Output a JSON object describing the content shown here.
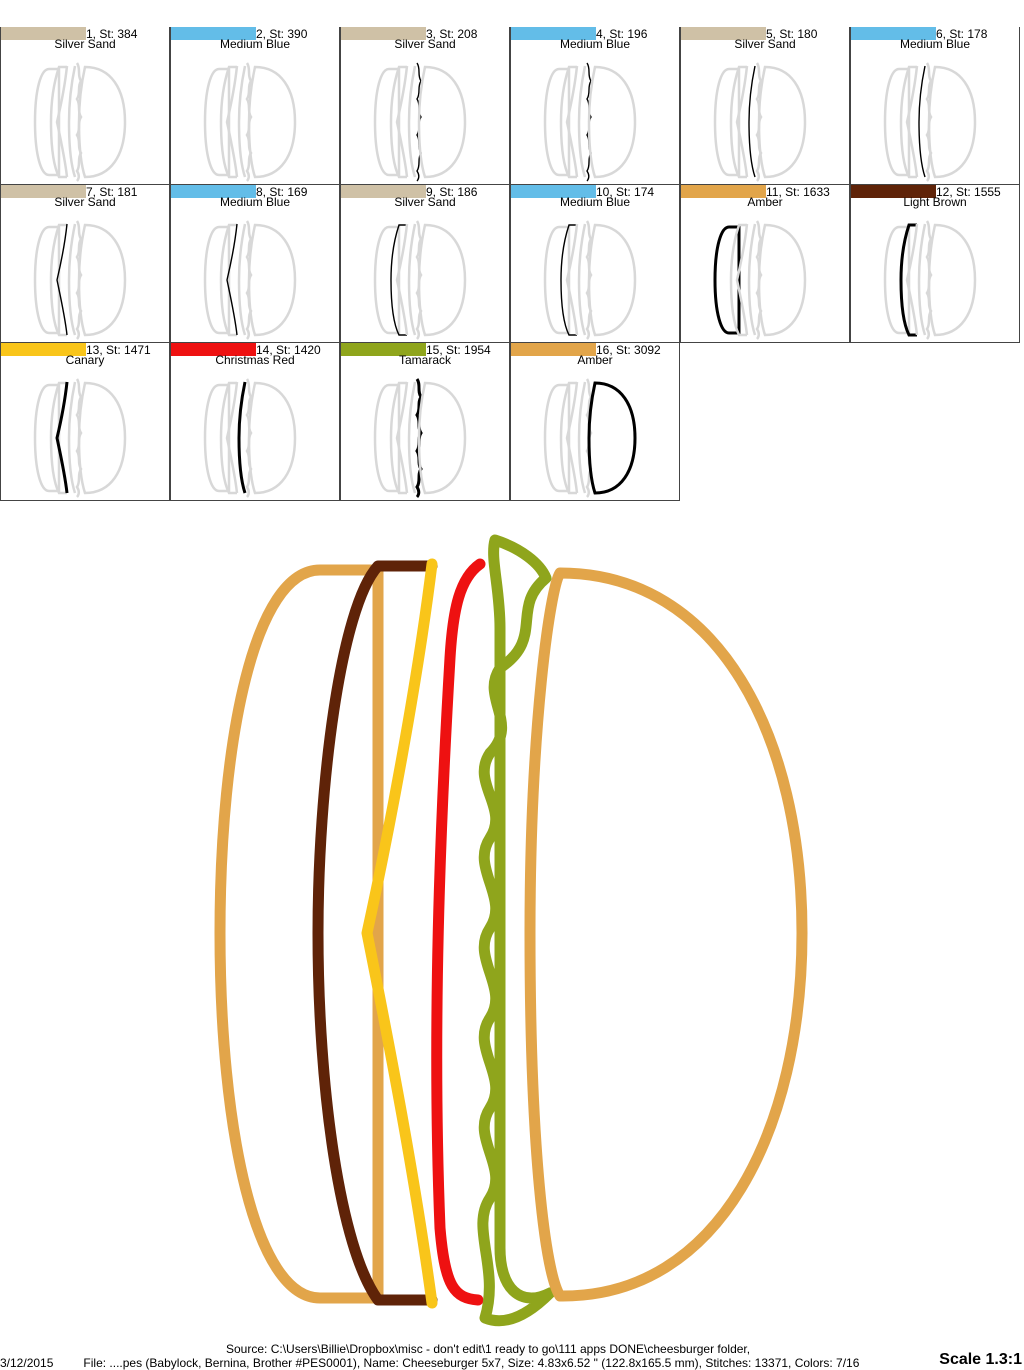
{
  "colors": [
    {
      "num": "1",
      "stitches": "St: 384",
      "name": "Silver Sand",
      "color": "#cfc1a6",
      "highlight": "bun-left"
    },
    {
      "num": "2",
      "stitches": "St: 390",
      "name": "Medium Blue",
      "color": "#63bde8",
      "highlight": "bun-left"
    },
    {
      "num": "3",
      "stitches": "St: 208",
      "name": "Silver Sand",
      "color": "#cfc1a6",
      "highlight": "lettuce"
    },
    {
      "num": "4",
      "stitches": "St: 196",
      "name": "Medium Blue",
      "color": "#63bde8",
      "highlight": "lettuce"
    },
    {
      "num": "5",
      "stitches": "St: 180",
      "name": "Silver Sand",
      "color": "#cfc1a6",
      "highlight": "tomato"
    },
    {
      "num": "6",
      "stitches": "St: 178",
      "name": "Medium Blue",
      "color": "#63bde8",
      "highlight": "tomato"
    },
    {
      "num": "7",
      "stitches": "St: 181",
      "name": "Silver Sand",
      "color": "#cfc1a6",
      "highlight": "cheese"
    },
    {
      "num": "8",
      "stitches": "St: 169",
      "name": "Medium Blue",
      "color": "#63bde8",
      "highlight": "cheese"
    },
    {
      "num": "9",
      "stitches": "St: 186",
      "name": "Silver Sand",
      "color": "#cfc1a6",
      "highlight": "patty"
    },
    {
      "num": "10",
      "stitches": "St: 174",
      "name": "Medium Blue",
      "color": "#63bde8",
      "highlight": "patty"
    },
    {
      "num": "11",
      "stitches": "St: 1633",
      "name": "Amber",
      "color": "#e2a54a",
      "highlight": "bottom-bun"
    },
    {
      "num": "12",
      "stitches": "St: 1555",
      "name": "Light Brown",
      "color": "#5f2308",
      "highlight": "patty"
    },
    {
      "num": "13",
      "stitches": "St: 1471",
      "name": "Canary",
      "color": "#f9c51a",
      "highlight": "cheese"
    },
    {
      "num": "14",
      "stitches": "St: 1420",
      "name": "Christmas Red",
      "color": "#ee1111",
      "highlight": "tomato"
    },
    {
      "num": "15",
      "stitches": "St: 1954",
      "name": "Tamarack",
      "color": "#8fa51c",
      "highlight": "lettuce"
    },
    {
      "num": "16",
      "stitches": "St: 3092",
      "name": "Amber",
      "color": "#e2a54a",
      "highlight": "top-bun"
    }
  ],
  "footer": {
    "source": "Source: C:\\Users\\Billie\\Dropbox\\misc - don't edit\\1 ready to go\\111 apps DONE\\cheesburger folder,",
    "date": "3/12/2015",
    "file": "File: ....pes (Babylock, Bernina, Brother #PES0001), Name: Cheeseburger 5x7, Size: 4.83x6.52 \" (122.8x165.5 mm), Stitches: 13371, Colors: 7/16",
    "scale": "Scale 1.3:1"
  }
}
